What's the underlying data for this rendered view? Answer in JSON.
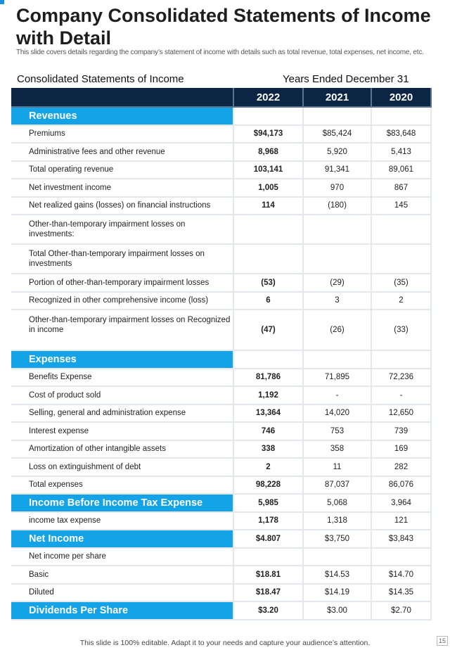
{
  "title": "Company Consolidated Statements of Income with Detail",
  "subtitle": "This slide covers details regarding the company’s statement of income with details such as total revenue, total expenses, net income, etc.",
  "caption_left": "Consolidated Statements of Income",
  "caption_right": "Years Ended December 31",
  "years": [
    "2022",
    "2021",
    "2020"
  ],
  "rows": [
    {
      "type": "section",
      "label": "Revenues",
      "values": [
        "",
        "",
        ""
      ]
    },
    {
      "label": "Premiums",
      "values": [
        "$94,173",
        "$85,424",
        "$83,648"
      ]
    },
    {
      "label": "Administrative fees and other revenue",
      "values": [
        "8,968",
        "5,920",
        "5,413"
      ]
    },
    {
      "label": "Total operating revenue",
      "values": [
        "103,141",
        "91,341",
        "89,061"
      ]
    },
    {
      "label": "Net investment income",
      "values": [
        "1,005",
        "970",
        "867"
      ]
    },
    {
      "label": "Net realized gains (losses) on financial instructions",
      "values": [
        "114",
        "(180)",
        "145"
      ]
    },
    {
      "label": "Other-than-temporary impairment losses on investments:",
      "values": [
        "",
        "",
        ""
      ],
      "h": "r42"
    },
    {
      "label": "Total Other-than-temporary impairment losses on investments",
      "values": [
        "",
        "",
        ""
      ],
      "h": "r42"
    },
    {
      "label": "Portion of other-than-temporary impairment losses",
      "values": [
        "(53)",
        "(29)",
        "(35)"
      ]
    },
    {
      "label": "Recognized in other comprehensive income (loss)",
      "values": [
        "6",
        "3",
        "2"
      ]
    },
    {
      "label": "Other-than-temporary impairment losses on Recognized in income",
      "values": [
        "(47)",
        "(26)",
        "(33)"
      ],
      "h": "r58"
    },
    {
      "type": "section",
      "label": "Expenses",
      "values": [
        "",
        "",
        ""
      ]
    },
    {
      "label": "Benefits Expense",
      "values": [
        "81,786",
        "71,895",
        "72,236"
      ]
    },
    {
      "label": "Cost of product sold",
      "values": [
        "1,192",
        "-",
        "-"
      ]
    },
    {
      "label": "Selling, general and administration expense",
      "values": [
        "13,364",
        "14,020",
        "12,650"
      ]
    },
    {
      "label": "Interest expense",
      "values": [
        "746",
        "753",
        "739"
      ]
    },
    {
      "label": "Amortization of other intangible assets",
      "values": [
        "338",
        "358",
        "169"
      ]
    },
    {
      "label": "Loss on extinguishment of debt",
      "values": [
        "2",
        "11",
        "282"
      ]
    },
    {
      "label": "Total expenses",
      "values": [
        "98,228",
        "87,037",
        "86,076"
      ]
    },
    {
      "type": "section",
      "label": "Income Before Income Tax Expense",
      "values": [
        "5,985",
        "5,068",
        "3,964"
      ]
    },
    {
      "label": "income tax expense",
      "values": [
        "1,178",
        "1,318",
        "121"
      ]
    },
    {
      "type": "section",
      "label": "Net Income",
      "values": [
        "$4.807",
        "$3,750",
        "$3,843"
      ]
    },
    {
      "label": "Net income per share",
      "values": [
        "",
        "",
        ""
      ]
    },
    {
      "label": "Basic",
      "values": [
        "$18.81",
        "$14.53",
        "$14.70"
      ]
    },
    {
      "label": "Diluted",
      "values": [
        "$18.47",
        "$14.19",
        "$14.35"
      ]
    },
    {
      "type": "section",
      "label": "Dividends Per Share",
      "values": [
        "$3.20",
        "$3.00",
        "$2.70"
      ]
    }
  ],
  "footer": "This slide is 100% editable. Adapt it to your needs and capture your audience’s attention.",
  "page_number": "15"
}
